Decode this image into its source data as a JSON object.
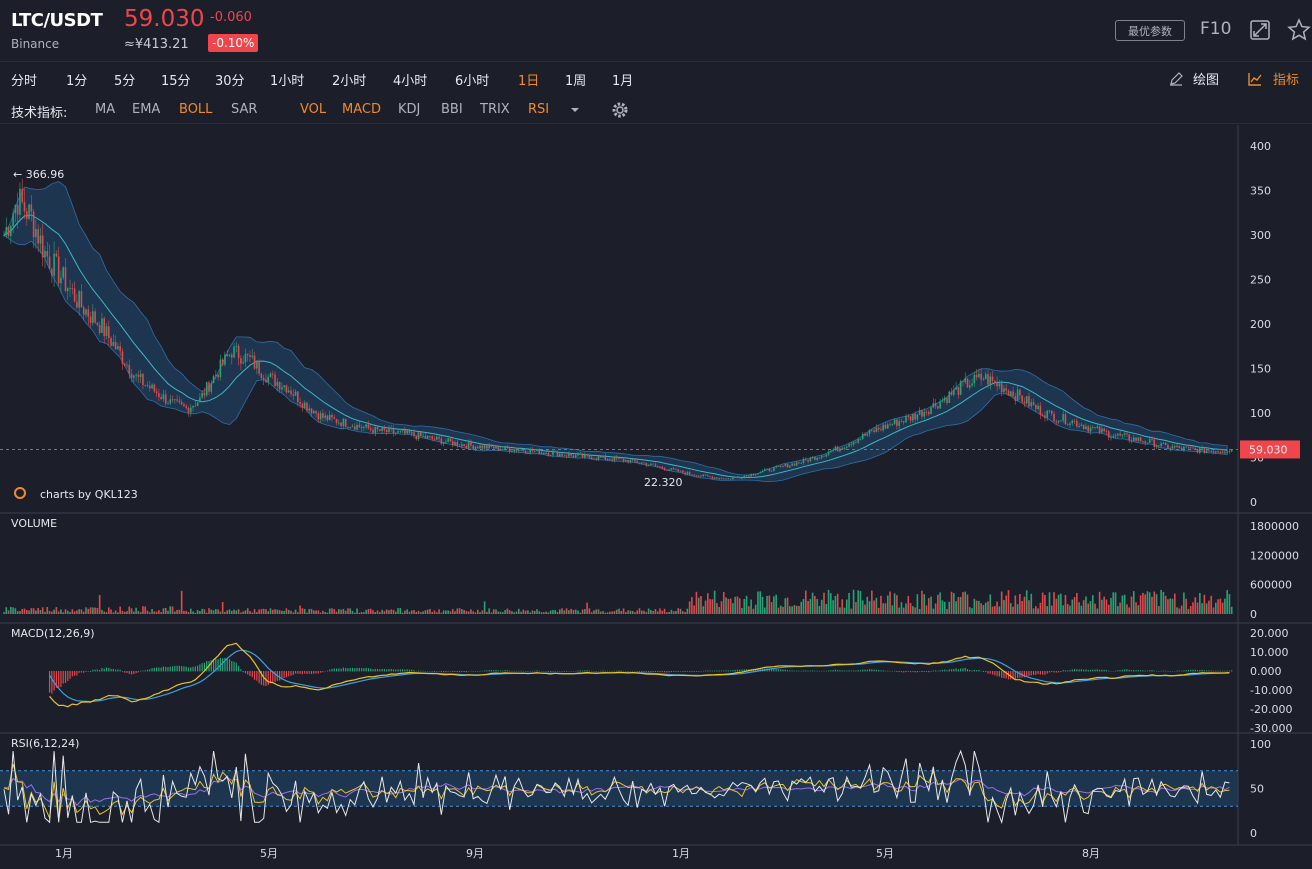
{
  "header": {
    "pair": "LTC/USDT",
    "exchange": "Binance",
    "price": "59.030",
    "change": "-0.060",
    "cny_price": "≈¥413.21",
    "change_pct": "-0.10%",
    "params_btn": "最优参数",
    "f10_btn": "F10"
  },
  "periods": [
    "分时",
    "1分",
    "5分",
    "15分",
    "30分",
    "1小时",
    "2小时",
    "4小时",
    "6小时",
    "1日",
    "1周",
    "1月"
  ],
  "active_period": "1日",
  "tools": {
    "draw": "绘图",
    "indicators": "指标"
  },
  "indicator_bar": {
    "label": "技术指标:",
    "items": [
      {
        "name": "MA",
        "on": false
      },
      {
        "name": "EMA",
        "on": false
      },
      {
        "name": "BOLL",
        "on": true
      },
      {
        "name": "SAR",
        "on": false
      },
      {
        "name": "VOL",
        "on": true
      },
      {
        "name": "MACD",
        "on": true
      },
      {
        "name": "KDJ",
        "on": false
      },
      {
        "name": "BBI",
        "on": false
      },
      {
        "name": "TRIX",
        "on": false
      },
      {
        "name": "RSI",
        "on": true
      }
    ]
  },
  "colors": {
    "up": "#27a376",
    "down": "#e0484e",
    "accent": "#f08a2c",
    "boll": "#1f4f7a",
    "macd_dif": "#e8c32a",
    "macd_dea": "#3aa0e0",
    "rsi1": "#e8e8e8",
    "rsi2": "#e8c32a",
    "rsi3": "#9b6fe8"
  },
  "watermark": "charts by QKL123",
  "chart_data": {
    "type": "candlestick",
    "main": {
      "y_ticks": [
        "400",
        "350",
        "300",
        "250",
        "200",
        "150",
        "100",
        "50",
        "0"
      ],
      "ylim": [
        0,
        400
      ],
      "high_label": "← 366.96",
      "low_label": "22.320",
      "last_price_label": "59.030",
      "approx_close_path": [
        [
          0,
          300
        ],
        [
          6,
          340
        ],
        [
          12,
          320
        ],
        [
          18,
          280
        ],
        [
          26,
          250
        ],
        [
          34,
          220
        ],
        [
          42,
          200
        ],
        [
          50,
          170
        ],
        [
          58,
          140
        ],
        [
          66,
          125
        ],
        [
          74,
          110
        ],
        [
          80,
          105
        ],
        [
          86,
          115
        ],
        [
          92,
          140
        ],
        [
          100,
          170
        ],
        [
          108,
          160
        ],
        [
          116,
          140
        ],
        [
          124,
          130
        ],
        [
          132,
          110
        ],
        [
          140,
          95
        ],
        [
          148,
          90
        ],
        [
          156,
          85
        ],
        [
          164,
          80
        ],
        [
          172,
          78
        ],
        [
          180,
          75
        ],
        [
          190,
          70
        ],
        [
          200,
          65
        ],
        [
          210,
          62
        ],
        [
          220,
          60
        ],
        [
          230,
          58
        ],
        [
          240,
          55
        ],
        [
          250,
          52
        ],
        [
          260,
          50
        ],
        [
          270,
          48
        ],
        [
          280,
          44
        ],
        [
          290,
          38
        ],
        [
          300,
          32
        ],
        [
          310,
          28
        ],
        [
          318,
          26
        ],
        [
          326,
          30
        ],
        [
          334,
          35
        ],
        [
          342,
          40
        ],
        [
          350,
          45
        ],
        [
          358,
          52
        ],
        [
          366,
          60
        ],
        [
          374,
          70
        ],
        [
          382,
          80
        ],
        [
          390,
          88
        ],
        [
          398,
          95
        ],
        [
          406,
          105
        ],
        [
          414,
          118
        ],
        [
          422,
          132
        ],
        [
          430,
          140
        ],
        [
          438,
          130
        ],
        [
          446,
          118
        ],
        [
          454,
          104
        ],
        [
          462,
          95
        ],
        [
          470,
          90
        ],
        [
          478,
          82
        ],
        [
          486,
          76
        ],
        [
          494,
          72
        ],
        [
          502,
          68
        ],
        [
          510,
          62
        ],
        [
          518,
          60
        ],
        [
          526,
          58
        ],
        [
          534,
          58
        ],
        [
          540,
          59
        ]
      ]
    },
    "volume": {
      "title": "VOLUME",
      "y_ticks": [
        "1800000",
        "1200000",
        "600000",
        "0"
      ],
      "ylim": [
        0,
        1800000
      ]
    },
    "macd": {
      "title": "MACD(12,26,9)",
      "y_ticks": [
        "20.000",
        "10.000",
        "0.000",
        "-10.000",
        "-20.000",
        "-30.000"
      ],
      "ylim": [
        -30,
        20
      ]
    },
    "rsi": {
      "title": "RSI(6,12,24)",
      "y_ticks": [
        "100",
        "50",
        "0"
      ],
      "ylim": [
        0,
        100
      ],
      "bands": [
        30,
        70
      ]
    },
    "x_ticks": [
      "1月",
      "5月",
      "9月",
      "1月",
      "5月",
      "8月"
    ]
  }
}
